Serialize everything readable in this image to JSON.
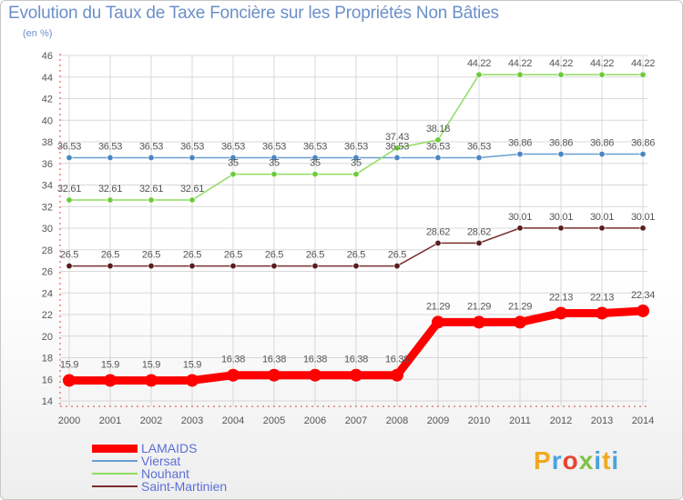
{
  "chart_data": {
    "type": "line",
    "title": "Evolution du Taux de Taxe Foncière sur les Propriétés Non Bâties",
    "ylabel": "(en %)",
    "ylim": [
      14,
      46
    ],
    "yticks": [
      14,
      16,
      18,
      20,
      22,
      24,
      26,
      28,
      30,
      32,
      34,
      36,
      38,
      40,
      42,
      44,
      46
    ],
    "grid": true,
    "legend_position": "bottom-left",
    "x": [
      "2000",
      "2001",
      "2002",
      "2003",
      "2004",
      "2005",
      "2006",
      "2007",
      "2008",
      "2009",
      "2010",
      "2011",
      "2012",
      "2013",
      "2014"
    ],
    "series": [
      {
        "name": "LAMAIDS",
        "color": "#ff0000",
        "values": [
          15.9,
          15.9,
          15.9,
          15.9,
          16.38,
          16.38,
          16.38,
          16.38,
          16.38,
          21.29,
          21.29,
          21.29,
          22.13,
          22.13,
          22.34
        ],
        "labels": [
          "15.9",
          "15.9",
          "15.9",
          "15.9",
          "16.38",
          "16.38",
          "16.38",
          "16.38",
          "16.38",
          "21.29",
          "21.29",
          "21.29",
          "22.13",
          "22.13",
          "22.34"
        ]
      },
      {
        "name": "Viersat",
        "color": "#6a9fd2",
        "values": [
          36.53,
          36.53,
          36.53,
          36.53,
          36.53,
          36.53,
          36.53,
          36.53,
          36.53,
          36.53,
          36.53,
          36.86,
          36.86,
          36.86,
          36.86
        ],
        "labels": [
          "36.53",
          "36.53",
          "36.53",
          "36.53",
          "36.53",
          "36.53",
          "36.53",
          "36.53",
          "36.53",
          "36.53",
          "36.53",
          "36.86",
          "36.86",
          "36.86",
          "36.86"
        ]
      },
      {
        "name": "Nouhant",
        "color": "#8fdc5f",
        "values": [
          32.61,
          32.61,
          32.61,
          32.61,
          35,
          35,
          35,
          35,
          37.43,
          38.18,
          44.22,
          44.22,
          44.22,
          44.22,
          44.22
        ],
        "labels": [
          "32.61",
          "32.61",
          "32.61",
          "32.61",
          "35",
          "35",
          "35",
          "35",
          "37.43",
          "38.18",
          "44.22",
          "44.22",
          "44.22",
          "44.22",
          "44.22"
        ]
      },
      {
        "name": "Saint-Martinien",
        "color": "#7a2e2e",
        "values": [
          26.5,
          26.5,
          26.5,
          26.5,
          26.5,
          26.5,
          26.5,
          26.5,
          26.5,
          28.62,
          28.62,
          30.01,
          30.01,
          30.01,
          30.01
        ],
        "labels": [
          "26.5",
          "26.5",
          "26.5",
          "26.5",
          "26.5",
          "26.5",
          "26.5",
          "26.5",
          "26.5",
          "28.62",
          "28.62",
          "30.01",
          "30.01",
          "30.01",
          "30.01"
        ]
      }
    ]
  },
  "logo": {
    "text": "Proxiti",
    "colors": [
      "#f2a81d",
      "#4aa3df",
      "#e8442f",
      "#7fc242",
      "#4aa3df",
      "#f2a81d",
      "#4aa3df"
    ]
  }
}
